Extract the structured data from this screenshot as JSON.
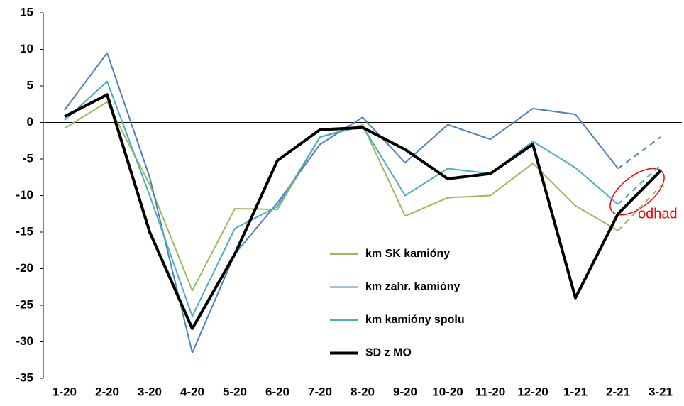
{
  "chart_data": {
    "type": "line",
    "categories": [
      "1-20",
      "2-20",
      "3-20",
      "4-20",
      "5-20",
      "6-20",
      "7-20",
      "8-20",
      "9-20",
      "10-20",
      "11-20",
      "12-20",
      "1-21",
      "2-21",
      "3-21"
    ],
    "series": [
      {
        "name": "km SK kamióny",
        "color": "#9bbb59",
        "width": 2,
        "dash_last_segment": true,
        "values": [
          -0.8,
          2.8,
          -8.5,
          -23,
          -11.8,
          -11.9,
          -2,
          -0.3,
          -12.8,
          -10.3,
          -10,
          -5.6,
          -11.4,
          -14.8,
          -8.7
        ]
      },
      {
        "name": "km zahr. kamióny",
        "color": "#4f81bd",
        "width": 2,
        "dash_last_segment": true,
        "values": [
          1.7,
          9.5,
          -7.5,
          -31.5,
          -18,
          -11,
          -3,
          0.7,
          -5.5,
          -0.3,
          -2.3,
          1.9,
          1.1,
          -6.3,
          -2
        ]
      },
      {
        "name": "km kamióny spolu",
        "color": "#4bacc6",
        "width": 2,
        "dash_last_segment": true,
        "values": [
          0.3,
          5.6,
          -10,
          -26.5,
          -14.5,
          -11.5,
          -2,
          -0.5,
          -10,
          -6.3,
          -7,
          -2.6,
          -6.2,
          -11.2,
          -5.8
        ]
      },
      {
        "name": "SD z MO",
        "color": "#000000",
        "width": 4,
        "dash_last_segment": false,
        "values": [
          0.8,
          3.8,
          -15,
          -28.2,
          -18,
          -5.2,
          -1,
          -0.7,
          -3.7,
          -7.7,
          -7,
          -3,
          -24,
          -12.5,
          -6.6
        ]
      }
    ],
    "ylim": [
      -35,
      15
    ],
    "yticks": [
      -35,
      -30,
      -25,
      -20,
      -15,
      -10,
      -5,
      0,
      5,
      10,
      15
    ],
    "annotation": "odhad",
    "annotation_color": "#ff0000"
  }
}
